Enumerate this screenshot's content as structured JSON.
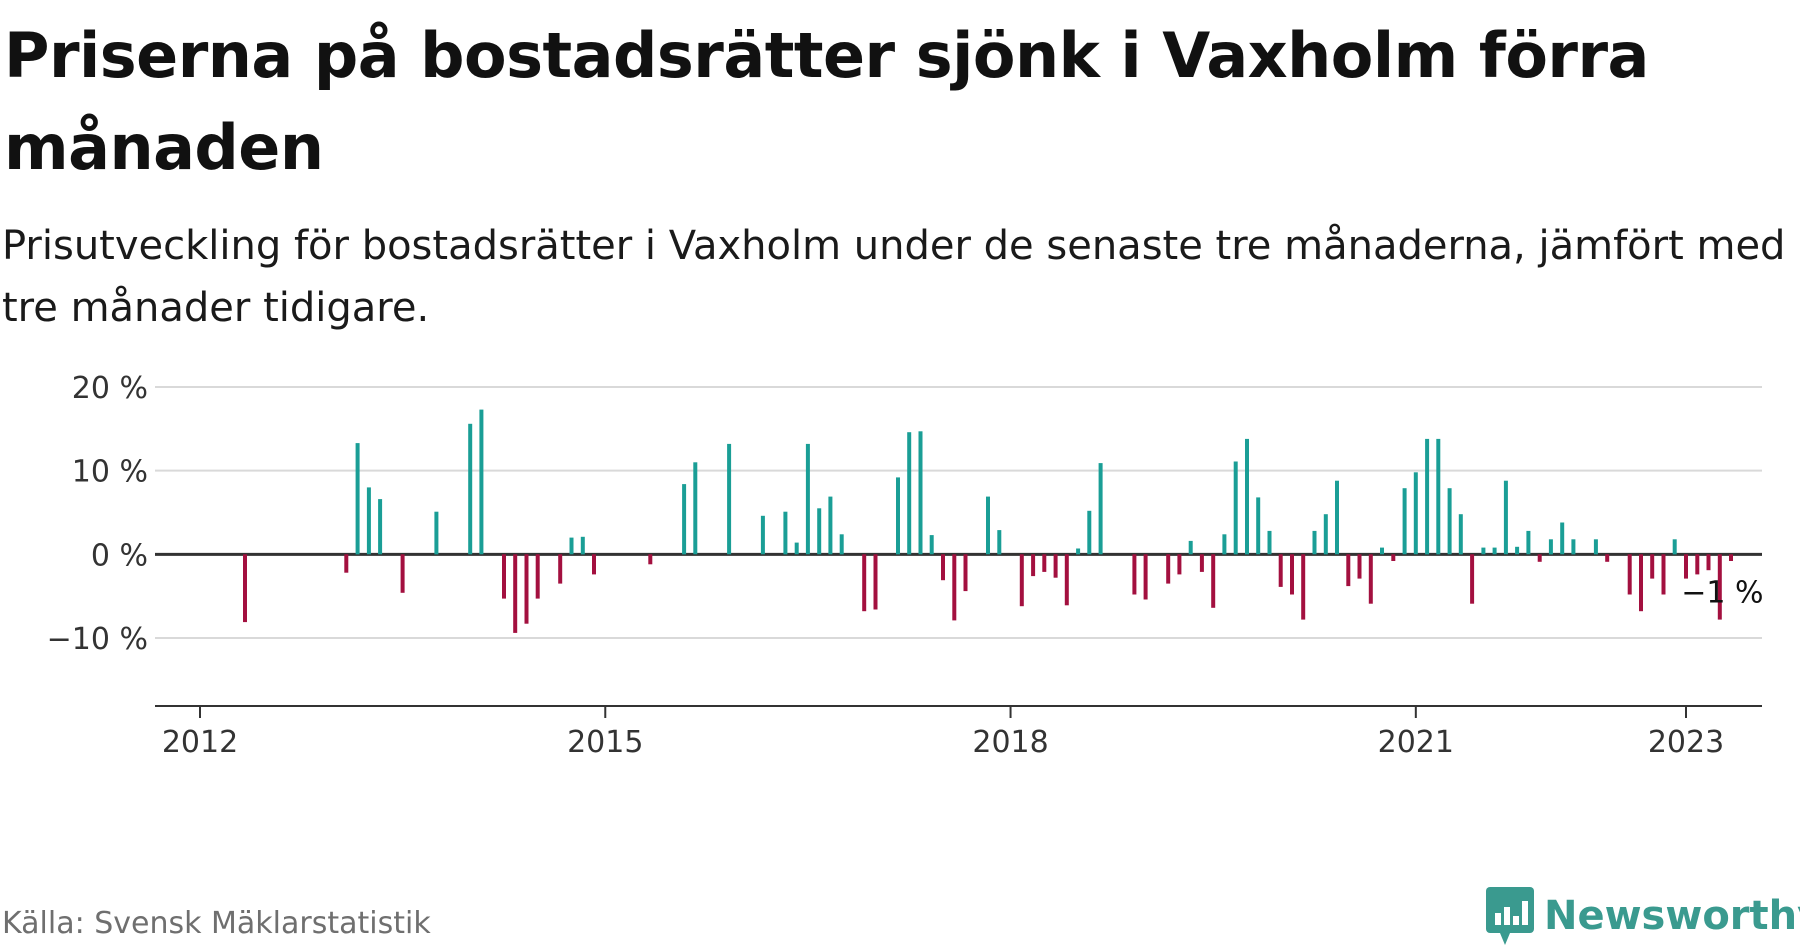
{
  "title": "Priserna på bostadsrätter sjönk i Vaxholm förra månaden",
  "subtitle": "Prisutveckling för bostadsrätter i Vaxholm under de senaste tre månaderna, jämfört med tre månader tidigare.",
  "source": "Källa: Svensk Mäklarstatistik",
  "brand": {
    "name": "Newsworthy",
    "icon": "newsworthy-logo-icon",
    "color": "#3a9a8f"
  },
  "colors": {
    "positive": "#1a9e96",
    "negative": "#a3103f",
    "grid": "#d9d9d9",
    "axis": "#333333"
  },
  "chart_data": {
    "type": "bar",
    "title": "",
    "xlabel": "",
    "ylabel": "",
    "ylim": [
      -10,
      20
    ],
    "y_ticks": [
      -10,
      0,
      10,
      20
    ],
    "y_tick_labels": [
      "−10 %",
      "0 %",
      "10 %",
      "20 %"
    ],
    "x_ticks": [
      "2012",
      "2015",
      "2018",
      "2021",
      "2023"
    ],
    "grid": true,
    "annotation": {
      "text": "−1 %",
      "x": "2023-02",
      "y": -0.8
    },
    "series": [
      {
        "values": [
          {
            "x": "2012-05",
            "y": -8.1
          },
          {
            "x": "2013-02",
            "y": -2.2
          },
          {
            "x": "2013-03",
            "y": 13.3
          },
          {
            "x": "2013-04",
            "y": 8.0
          },
          {
            "x": "2013-05",
            "y": 6.6
          },
          {
            "x": "2013-07",
            "y": -4.6
          },
          {
            "x": "2013-10",
            "y": 5.1
          },
          {
            "x": "2014-01",
            "y": 15.6
          },
          {
            "x": "2014-02",
            "y": 17.3
          },
          {
            "x": "2014-04",
            "y": -5.3
          },
          {
            "x": "2014-05",
            "y": -9.4
          },
          {
            "x": "2014-06",
            "y": -8.3
          },
          {
            "x": "2014-07",
            "y": -5.3
          },
          {
            "x": "2014-09",
            "y": -3.5
          },
          {
            "x": "2014-10",
            "y": 2.0
          },
          {
            "x": "2014-11",
            "y": 2.1
          },
          {
            "x": "2014-12",
            "y": -2.4
          },
          {
            "x": "2015-05",
            "y": -1.2
          },
          {
            "x": "2015-08",
            "y": 8.4
          },
          {
            "x": "2015-09",
            "y": 11.0
          },
          {
            "x": "2015-12",
            "y": 13.2
          },
          {
            "x": "2016-03",
            "y": 4.6
          },
          {
            "x": "2016-05",
            "y": 5.1
          },
          {
            "x": "2016-06",
            "y": 1.4
          },
          {
            "x": "2016-07",
            "y": 13.2
          },
          {
            "x": "2016-08",
            "y": 5.5
          },
          {
            "x": "2016-09",
            "y": 6.9
          },
          {
            "x": "2016-10",
            "y": 2.4
          },
          {
            "x": "2016-12",
            "y": -6.8
          },
          {
            "x": "2017-01",
            "y": -6.6
          },
          {
            "x": "2017-03",
            "y": 9.2
          },
          {
            "x": "2017-04",
            "y": 14.6
          },
          {
            "x": "2017-05",
            "y": 14.7
          },
          {
            "x": "2017-06",
            "y": 2.3
          },
          {
            "x": "2017-07",
            "y": -3.1
          },
          {
            "x": "2017-08",
            "y": -7.9
          },
          {
            "x": "2017-09",
            "y": -4.4
          },
          {
            "x": "2017-11",
            "y": 6.9
          },
          {
            "x": "2017-12",
            "y": 2.9
          },
          {
            "x": "2018-02",
            "y": -6.2
          },
          {
            "x": "2018-03",
            "y": -2.6
          },
          {
            "x": "2018-04",
            "y": -2.1
          },
          {
            "x": "2018-05",
            "y": -2.8
          },
          {
            "x": "2018-06",
            "y": -6.1
          },
          {
            "x": "2018-07",
            "y": 0.7
          },
          {
            "x": "2018-08",
            "y": 5.2
          },
          {
            "x": "2018-09",
            "y": 10.9
          },
          {
            "x": "2018-12",
            "y": -4.8
          },
          {
            "x": "2019-01",
            "y": -5.4
          },
          {
            "x": "2019-03",
            "y": -3.5
          },
          {
            "x": "2019-04",
            "y": -2.4
          },
          {
            "x": "2019-05",
            "y": 1.6
          },
          {
            "x": "2019-06",
            "y": -2.1
          },
          {
            "x": "2019-07",
            "y": -6.4
          },
          {
            "x": "2019-08",
            "y": 2.4
          },
          {
            "x": "2019-09",
            "y": 11.1
          },
          {
            "x": "2019-10",
            "y": 13.8
          },
          {
            "x": "2019-11",
            "y": 6.8
          },
          {
            "x": "2019-12",
            "y": 2.8
          },
          {
            "x": "2020-01",
            "y": -3.9
          },
          {
            "x": "2020-02",
            "y": -4.8
          },
          {
            "x": "2020-03",
            "y": -7.8
          },
          {
            "x": "2020-04",
            "y": 2.8
          },
          {
            "x": "2020-05",
            "y": 4.8
          },
          {
            "x": "2020-06",
            "y": 8.8
          },
          {
            "x": "2020-07",
            "y": -3.8
          },
          {
            "x": "2020-08",
            "y": -2.9
          },
          {
            "x": "2020-09",
            "y": -5.9
          },
          {
            "x": "2020-10",
            "y": 0.8
          },
          {
            "x": "2020-11",
            "y": -0.8
          },
          {
            "x": "2020-12",
            "y": 7.9
          },
          {
            "x": "2021-01",
            "y": 9.8
          },
          {
            "x": "2021-02",
            "y": 13.8
          },
          {
            "x": "2021-03",
            "y": 13.8
          },
          {
            "x": "2021-04",
            "y": 7.9
          },
          {
            "x": "2021-05",
            "y": 4.8
          },
          {
            "x": "2021-06",
            "y": -5.9
          },
          {
            "x": "2021-07",
            "y": 0.8
          },
          {
            "x": "2021-08",
            "y": 0.8
          },
          {
            "x": "2021-09",
            "y": 8.8
          },
          {
            "x": "2021-10",
            "y": 0.9
          },
          {
            "x": "2021-11",
            "y": 2.8
          },
          {
            "x": "2021-12",
            "y": -0.9
          },
          {
            "x": "2022-01",
            "y": 1.8
          },
          {
            "x": "2022-02",
            "y": 3.8
          },
          {
            "x": "2022-03",
            "y": 1.8
          },
          {
            "x": "2022-05",
            "y": 1.8
          },
          {
            "x": "2022-06",
            "y": -0.9
          },
          {
            "x": "2022-08",
            "y": -4.8
          },
          {
            "x": "2022-09",
            "y": -6.8
          },
          {
            "x": "2022-10",
            "y": -2.9
          },
          {
            "x": "2022-11",
            "y": -4.8
          },
          {
            "x": "2022-12",
            "y": 1.8
          },
          {
            "x": "2023-01",
            "y": -2.9
          },
          {
            "x": "2023-02",
            "y": -2.4
          },
          {
            "x": "2023-03",
            "y": -1.9
          },
          {
            "x": "2023-04",
            "y": -7.8
          },
          {
            "x": "2023-05",
            "y": -0.8
          }
        ]
      }
    ]
  }
}
